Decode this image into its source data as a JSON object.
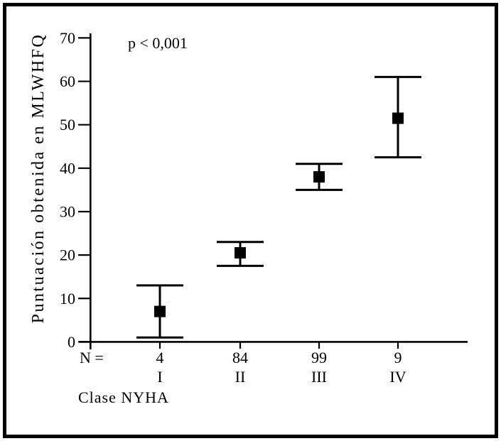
{
  "figure": {
    "background": "#ffffff",
    "border_color": "#000000"
  },
  "chart_data": {
    "type": "errorbar",
    "title": "",
    "ylabel": "Puntuación obtenida en MLWHFQ",
    "xlabel": "Clase NYHA",
    "annotation": "p < 0,001",
    "n_prefix": "N =",
    "categories": [
      "I",
      "II",
      "III",
      "IV"
    ],
    "n_values": [
      "4",
      "84",
      "99",
      "9"
    ],
    "series": [
      {
        "name": "mean",
        "values": [
          7,
          20.5,
          38,
          51.5
        ]
      },
      {
        "name": "ci_low",
        "values": [
          1,
          17.5,
          35,
          42.5
        ]
      },
      {
        "name": "ci_high",
        "values": [
          13,
          23,
          41,
          61
        ]
      }
    ],
    "ylim": [
      0,
      70
    ],
    "yticks": [
      0,
      10,
      20,
      30,
      40,
      50,
      60,
      70
    ],
    "grid": false,
    "legend": false,
    "marker": "filled-square",
    "foreground_color": "#000000",
    "background_color": "#ffffff"
  }
}
